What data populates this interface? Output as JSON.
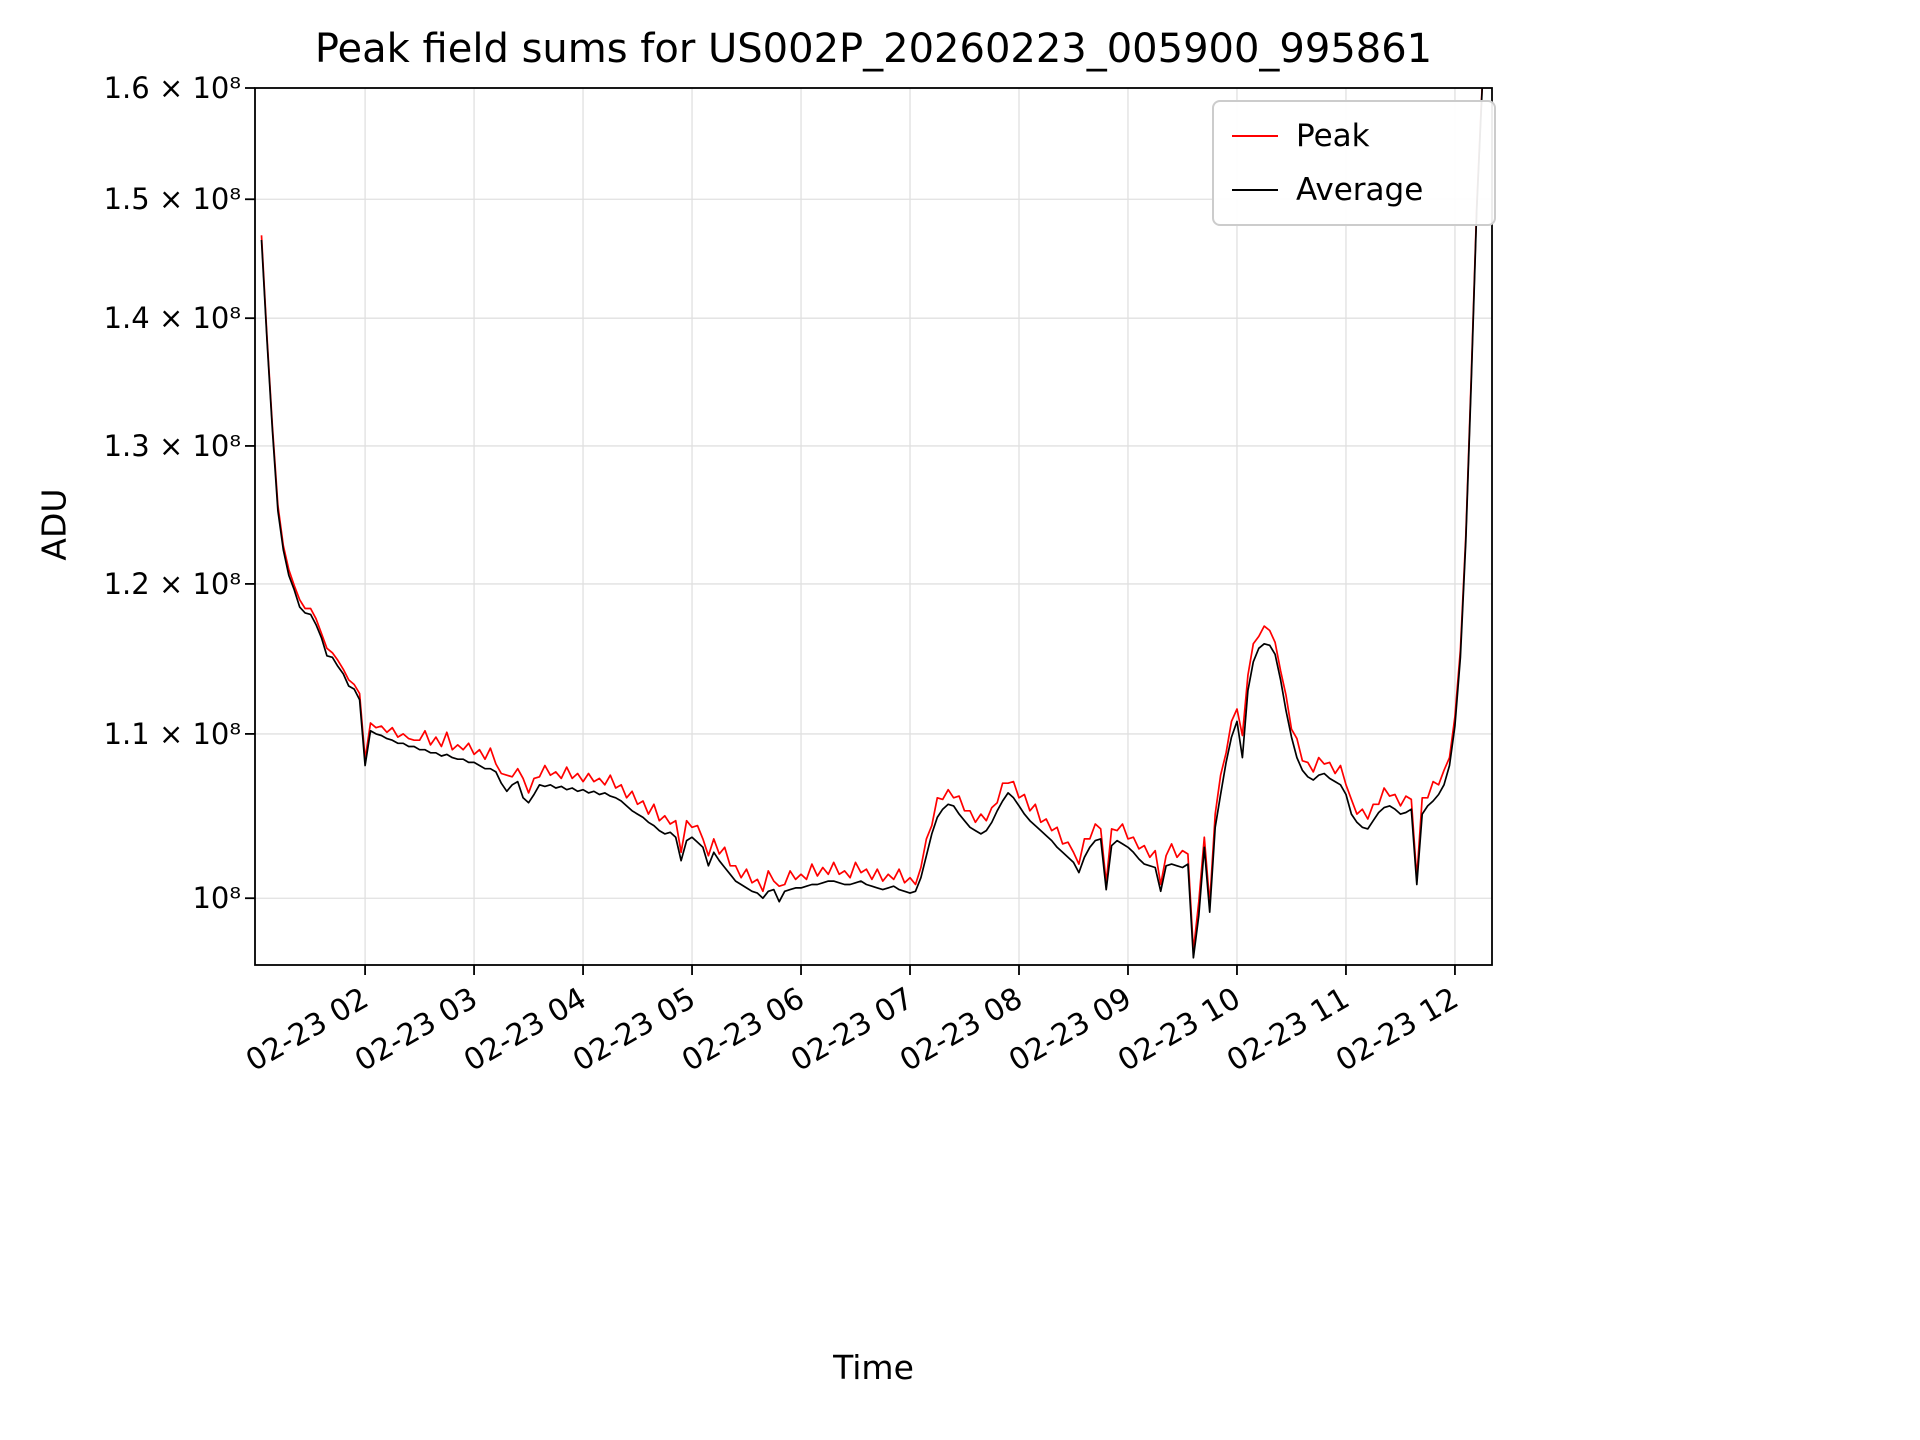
{
  "figure": {
    "background": "#ffffff"
  },
  "legend": {
    "position": "upper right",
    "border_color": "#cccccc"
  },
  "chart_data": {
    "type": "line",
    "title": "Peak field sums for US002P_20260223_005900_995861",
    "xlabel": "Time",
    "ylabel": "ADU",
    "yscale": "log",
    "grid": true,
    "grid_color": "#e0e0e0",
    "x_unit": "hours since 2026-02-23 00:00",
    "y_unit": "1e8 ADU",
    "xlim": [
      0.99,
      12.34
    ],
    "ylim_e8": [
      0.962,
      1.6
    ],
    "xticks": {
      "values": [
        2,
        3,
        4,
        5,
        6,
        7,
        8,
        9,
        10,
        11,
        12
      ],
      "labels": [
        "02-23 02",
        "02-23 03",
        "02-23 04",
        "02-23 05",
        "02-23 06",
        "02-23 07",
        "02-23 08",
        "02-23 09",
        "02-23 10",
        "02-23 11",
        "02-23 12"
      ]
    },
    "yticks": {
      "values_e8": [
        1.0,
        1.1,
        1.2,
        1.3,
        1.4,
        1.5,
        1.6
      ],
      "labels": [
        "10⁸",
        "1.1 × 10⁸",
        "1.2 × 10⁸",
        "1.3 × 10⁸",
        "1.4 × 10⁸",
        "1.5 × 10⁸",
        "1.6 × 10⁸"
      ]
    },
    "x_hours": [
      1.05,
      1.1,
      1.15,
      1.2,
      1.25,
      1.3,
      1.35,
      1.4,
      1.45,
      1.5,
      1.55,
      1.6,
      1.65,
      1.7,
      1.75,
      1.8,
      1.85,
      1.9,
      1.95,
      2,
      2.05,
      2.1,
      2.15,
      2.2,
      2.25,
      2.3,
      2.35,
      2.4,
      2.45,
      2.5,
      2.55,
      2.6,
      2.65,
      2.7,
      2.75,
      2.8,
      2.85,
      2.9,
      2.95,
      3,
      3.05,
      3.1,
      3.15,
      3.2,
      3.25,
      3.3,
      3.35,
      3.4,
      3.45,
      3.5,
      3.55,
      3.6,
      3.65,
      3.7,
      3.75,
      3.8,
      3.85,
      3.9,
      3.95,
      4,
      4.05,
      4.1,
      4.15,
      4.2,
      4.25,
      4.3,
      4.35,
      4.4,
      4.45,
      4.5,
      4.55,
      4.6,
      4.65,
      4.7,
      4.75,
      4.8,
      4.85,
      4.9,
      4.95,
      5,
      5.05,
      5.1,
      5.15,
      5.2,
      5.25,
      5.3,
      5.35,
      5.4,
      5.45,
      5.5,
      5.55,
      5.6,
      5.65,
      5.7,
      5.75,
      5.8,
      5.85,
      5.9,
      5.95,
      6,
      6.05,
      6.1,
      6.15,
      6.2,
      6.25,
      6.3,
      6.35,
      6.4,
      6.45,
      6.5,
      6.55,
      6.6,
      6.65,
      6.7,
      6.75,
      6.8,
      6.85,
      6.9,
      6.95,
      7,
      7.05,
      7.1,
      7.15,
      7.2,
      7.25,
      7.3,
      7.35,
      7.4,
      7.45,
      7.5,
      7.55,
      7.6,
      7.65,
      7.7,
      7.75,
      7.8,
      7.85,
      7.9,
      7.95,
      8,
      8.05,
      8.1,
      8.15,
      8.2,
      8.25,
      8.3,
      8.35,
      8.4,
      8.45,
      8.5,
      8.55,
      8.6,
      8.65,
      8.7,
      8.75,
      8.8,
      8.85,
      8.9,
      8.95,
      9,
      9.05,
      9.1,
      9.15,
      9.2,
      9.25,
      9.3,
      9.35,
      9.4,
      9.45,
      9.5,
      9.55,
      9.6,
      9.65,
      9.7,
      9.75,
      9.8,
      9.85,
      9.9,
      9.95,
      10,
      10.05,
      10.1,
      10.15,
      10.2,
      10.25,
      10.3,
      10.35,
      10.4,
      10.45,
      10.5,
      10.55,
      10.6,
      10.65,
      10.7,
      10.75,
      10.8,
      10.85,
      10.9,
      10.95,
      11,
      11.05,
      11.1,
      11.15,
      11.2,
      11.25,
      11.3,
      11.35,
      11.4,
      11.45,
      11.5,
      11.55,
      11.6,
      11.65,
      11.7,
      11.75,
      11.8,
      11.85,
      11.9,
      11.95,
      12,
      12.05,
      12.1,
      12.15,
      12.2,
      12.25
    ],
    "series": [
      {
        "name": "Peak",
        "color": "#ff0000",
        "values_e8": [
          1.469,
          1.385,
          1.315,
          1.256,
          1.227,
          1.21,
          1.199,
          1.189,
          1.183,
          1.183,
          1.176,
          1.166,
          1.156,
          1.153,
          1.148,
          1.142,
          1.135,
          1.132,
          1.126,
          1.084,
          1.107,
          1.104,
          1.105,
          1.101,
          1.104,
          1.098,
          1.1,
          1.097,
          1.096,
          1.096,
          1.102,
          1.093,
          1.098,
          1.092,
          1.101,
          1.09,
          1.093,
          1.09,
          1.094,
          1.087,
          1.09,
          1.084,
          1.091,
          1.081,
          1.075,
          1.074,
          1.073,
          1.078,
          1.072,
          1.063,
          1.072,
          1.073,
          1.08,
          1.074,
          1.076,
          1.072,
          1.079,
          1.072,
          1.075,
          1.07,
          1.075,
          1.07,
          1.072,
          1.068,
          1.074,
          1.066,
          1.068,
          1.06,
          1.064,
          1.056,
          1.058,
          1.05,
          1.056,
          1.046,
          1.049,
          1.044,
          1.046,
          1.027,
          1.046,
          1.042,
          1.043,
          1.035,
          1.025,
          1.035,
          1.026,
          1.03,
          1.019,
          1.019,
          1.012,
          1.017,
          1.009,
          1.011,
          1.004,
          1.016,
          1.01,
          1.007,
          1.008,
          1.016,
          1.011,
          1.014,
          1.011,
          1.02,
          1.013,
          1.018,
          1.014,
          1.021,
          1.014,
          1.016,
          1.012,
          1.021,
          1.015,
          1.017,
          1.011,
          1.017,
          1.01,
          1.014,
          1.011,
          1.017,
          1.009,
          1.012,
          1.008,
          1.018,
          1.035,
          1.043,
          1.06,
          1.059,
          1.065,
          1.06,
          1.061,
          1.052,
          1.052,
          1.045,
          1.05,
          1.046,
          1.054,
          1.057,
          1.069,
          1.069,
          1.07,
          1.06,
          1.062,
          1.052,
          1.056,
          1.045,
          1.047,
          1.04,
          1.042,
          1.032,
          1.033,
          1.027,
          1.02,
          1.035,
          1.035,
          1.044,
          1.041,
          1.009,
          1.041,
          1.04,
          1.044,
          1.035,
          1.036,
          1.029,
          1.031,
          1.024,
          1.028,
          1.008,
          1.025,
          1.032,
          1.024,
          1.028,
          1.026,
          0.97,
          0.998,
          1.036,
          0.997,
          1.05,
          1.074,
          1.088,
          1.108,
          1.116,
          1.099,
          1.138,
          1.159,
          1.164,
          1.171,
          1.168,
          1.16,
          1.141,
          1.125,
          1.103,
          1.097,
          1.083,
          1.082,
          1.076,
          1.085,
          1.081,
          1.082,
          1.075,
          1.08,
          1.068,
          1.059,
          1.05,
          1.053,
          1.047,
          1.056,
          1.056,
          1.066,
          1.061,
          1.062,
          1.055,
          1.061,
          1.059,
          1.012,
          1.06,
          1.06,
          1.07,
          1.068,
          1.077,
          1.085,
          1.111,
          1.155,
          1.234,
          1.355,
          1.494,
          1.603
        ]
      },
      {
        "name": "Average",
        "color": "#000000",
        "values_e8": [
          1.465,
          1.382,
          1.312,
          1.252,
          1.224,
          1.206,
          1.196,
          1.184,
          1.18,
          1.179,
          1.172,
          1.163,
          1.151,
          1.15,
          1.144,
          1.139,
          1.131,
          1.129,
          1.122,
          1.08,
          1.102,
          1.1,
          1.099,
          1.097,
          1.096,
          1.094,
          1.094,
          1.092,
          1.092,
          1.09,
          1.09,
          1.088,
          1.088,
          1.086,
          1.087,
          1.085,
          1.084,
          1.084,
          1.082,
          1.082,
          1.08,
          1.078,
          1.078,
          1.076,
          1.069,
          1.064,
          1.068,
          1.07,
          1.06,
          1.057,
          1.062,
          1.068,
          1.067,
          1.068,
          1.066,
          1.067,
          1.065,
          1.066,
          1.064,
          1.065,
          1.063,
          1.064,
          1.062,
          1.063,
          1.061,
          1.06,
          1.058,
          1.055,
          1.052,
          1.05,
          1.048,
          1.045,
          1.043,
          1.04,
          1.038,
          1.039,
          1.036,
          1.022,
          1.034,
          1.036,
          1.033,
          1.03,
          1.019,
          1.027,
          1.022,
          1.018,
          1.014,
          1.01,
          1.008,
          1.006,
          1.004,
          1.003,
          1,
          1.004,
          1.005,
          0.998,
          1.004,
          1.005,
          1.006,
          1.006,
          1.007,
          1.008,
          1.008,
          1.009,
          1.01,
          1.01,
          1.009,
          1.008,
          1.008,
          1.009,
          1.01,
          1.008,
          1.007,
          1.006,
          1.005,
          1.006,
          1.007,
          1.005,
          1.004,
          1.003,
          1.004,
          1.012,
          1.025,
          1.038,
          1.048,
          1.053,
          1.056,
          1.055,
          1.05,
          1.046,
          1.042,
          1.04,
          1.038,
          1.04,
          1.045,
          1.052,
          1.058,
          1.063,
          1.06,
          1.055,
          1.05,
          1.046,
          1.043,
          1.04,
          1.037,
          1.034,
          1.03,
          1.027,
          1.024,
          1.021,
          1.015,
          1.024,
          1.03,
          1.034,
          1.035,
          1.005,
          1.031,
          1.034,
          1.032,
          1.03,
          1.027,
          1.023,
          1.02,
          1.019,
          1.018,
          1.004,
          1.019,
          1.02,
          1.019,
          1.018,
          1.02,
          0.966,
          0.99,
          1.03,
          0.992,
          1.042,
          1.062,
          1.082,
          1.098,
          1.108,
          1.085,
          1.128,
          1.147,
          1.156,
          1.159,
          1.158,
          1.152,
          1.135,
          1.115,
          1.098,
          1.085,
          1.077,
          1.073,
          1.071,
          1.074,
          1.075,
          1.072,
          1.07,
          1.068,
          1.062,
          1.05,
          1.045,
          1.042,
          1.041,
          1.046,
          1.051,
          1.054,
          1.055,
          1.053,
          1.05,
          1.051,
          1.053,
          1.008,
          1.05,
          1.055,
          1.058,
          1.062,
          1.068,
          1.08,
          1.105,
          1.15,
          1.23,
          1.35,
          1.49,
          1.6
        ]
      }
    ]
  }
}
